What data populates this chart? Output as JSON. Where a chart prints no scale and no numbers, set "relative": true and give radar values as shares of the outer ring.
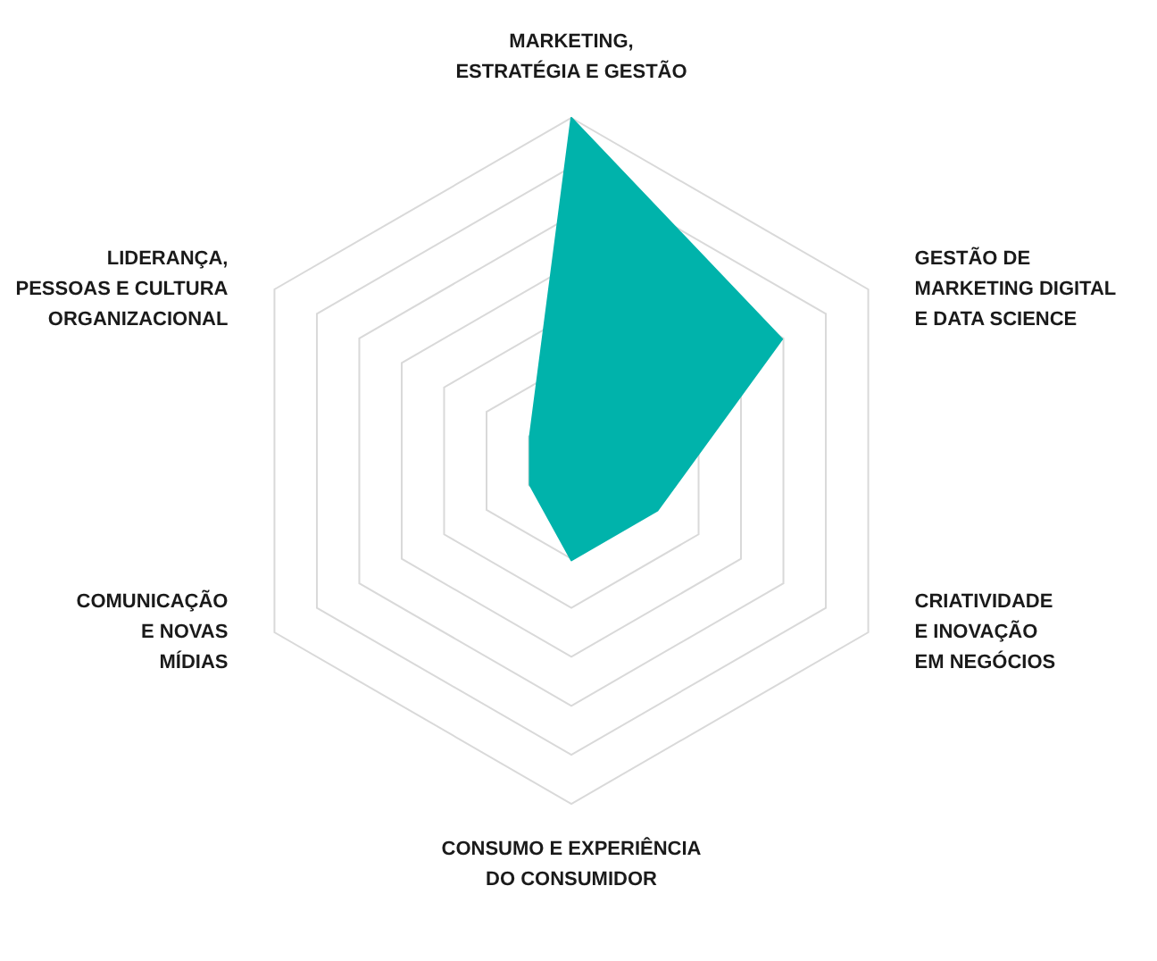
{
  "chart_data": {
    "type": "radar",
    "relative": true,
    "grid": true,
    "categories": [
      "MARKETING,\nESTRATÉGIA E GESTÃO",
      "GESTÃO DE\nMARKETING DIGITAL\nE DATA SCIENCE",
      "CRIATIVIDADE\nE INOVAÇÃO\nEM NEGÓCIOS",
      "CONSUMO E EXPERIÊNCIA\nDO CONSUMIDOR",
      "COMUNICAÇÃO\nE NOVAS\nMÍDIAS",
      "LIDERANÇA,\nPESSOAS E CULTURA\nORGANIZACIONAL"
    ],
    "series": [
      {
        "color": "#00b3ab",
        "values": [
          1,
          0.71,
          0.29,
          0.29,
          0.14,
          0.14
        ]
      }
    ]
  }
}
